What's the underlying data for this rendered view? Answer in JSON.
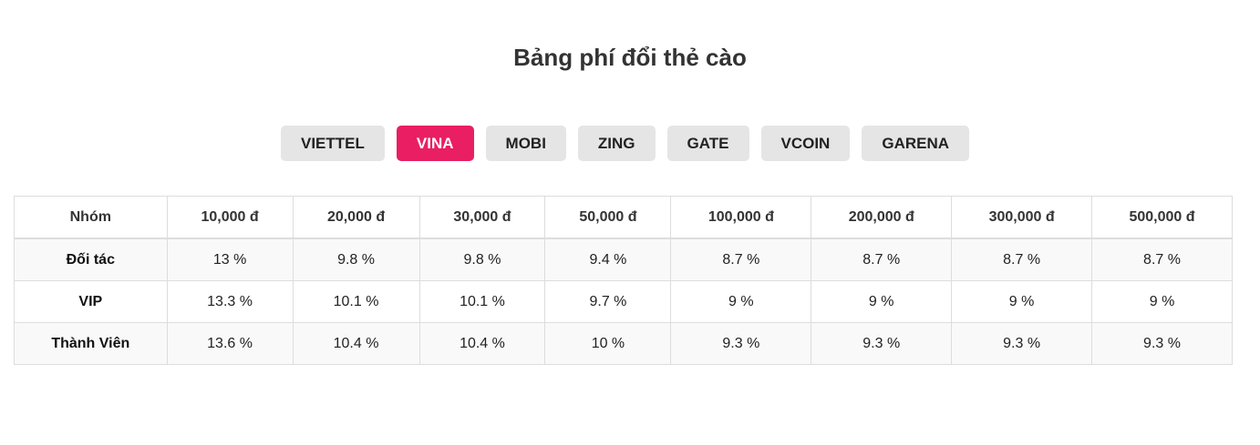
{
  "title": "Bảng phí đổi thẻ cào",
  "accent_color": "#e91e63",
  "tabs": [
    {
      "label": "VIETTEL",
      "active": false
    },
    {
      "label": "VINA",
      "active": true
    },
    {
      "label": "MOBI",
      "active": false
    },
    {
      "label": "ZING",
      "active": false
    },
    {
      "label": "GATE",
      "active": false
    },
    {
      "label": "VCOIN",
      "active": false
    },
    {
      "label": "GARENA",
      "active": false
    }
  ],
  "table": {
    "headers": [
      "Nhóm",
      "10,000 đ",
      "20,000 đ",
      "30,000 đ",
      "50,000 đ",
      "100,000 đ",
      "200,000 đ",
      "300,000 đ",
      "500,000 đ"
    ],
    "rows": [
      [
        "Đối tác",
        "13 %",
        "9.8 %",
        "9.8 %",
        "9.4 %",
        "8.7 %",
        "8.7 %",
        "8.7 %",
        "8.7 %"
      ],
      [
        "VIP",
        "13.3 %",
        "10.1 %",
        "10.1 %",
        "9.7 %",
        "9 %",
        "9 %",
        "9 %",
        "9 %"
      ],
      [
        "Thành Viên",
        "13.6 %",
        "10.4 %",
        "10.4 %",
        "10 %",
        "9.3 %",
        "9.3 %",
        "9.3 %",
        "9.3 %"
      ]
    ]
  }
}
